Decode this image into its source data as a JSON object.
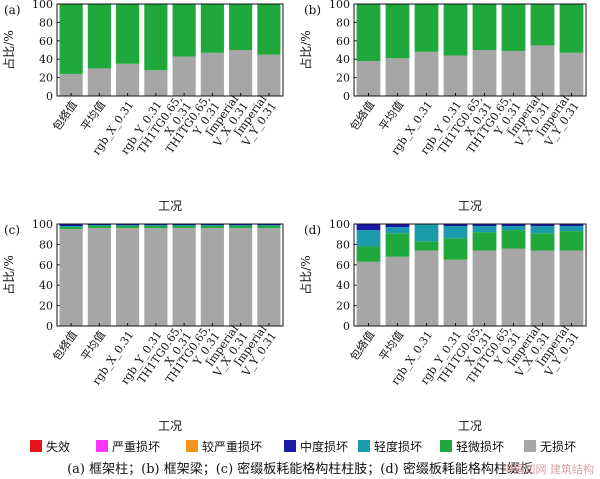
{
  "legend": [
    {
      "label": "失效",
      "color": "#e8141c"
    },
    {
      "label": "严重损坏",
      "color": "#ff33ff"
    },
    {
      "label": "较严重损坏",
      "color": "#f7941d"
    },
    {
      "label": "中度损坏",
      "color": "#1a1aa6"
    },
    {
      "label": "轻度损坏",
      "color": "#1a9aab"
    },
    {
      "label": "轻微损坏",
      "color": "#1fa83c"
    },
    {
      "label": "无损坏",
      "color": "#a6a6a6"
    }
  ],
  "caption": "(a) 框架柱；(b) 框架梁；(c) 密缀板耗能格构柱柱肢；(d) 密缀板耗能格构柱缀板",
  "watermark": "中国知网 建筑结构",
  "chart_data": [
    {
      "panel": "(a)",
      "type": "bar",
      "stacked": true,
      "ylabel": "占比/%",
      "xlabel": "工况",
      "ylim": [
        0,
        100
      ],
      "yticks": [
        0,
        20,
        40,
        60,
        80,
        100
      ],
      "categories": [
        "包络值",
        "平均值",
        "rgb_X_0.31",
        "rgb_Y_0.31",
        "TH1TG0.65_X_0.31",
        "TH1TG0.65_Y_0.31",
        "Imperial V_X_0.31",
        "Imperial V_Y_0.31"
      ],
      "series": [
        {
          "name": "无损坏",
          "values": [
            24,
            30,
            35,
            28,
            43,
            47,
            50,
            45
          ]
        },
        {
          "name": "轻微损坏",
          "values": [
            76,
            70,
            65,
            72,
            57,
            53,
            50,
            55
          ]
        }
      ]
    },
    {
      "panel": "(b)",
      "type": "bar",
      "stacked": true,
      "ylabel": "占比/%",
      "xlabel": "工况",
      "ylim": [
        0,
        100
      ],
      "yticks": [
        0,
        20,
        40,
        60,
        80,
        100
      ],
      "categories": [
        "包络值",
        "平均值",
        "rgb_X_0.31",
        "rgb_Y_0.31",
        "TH1TG0.65_X_0.31",
        "TH1TG0.65_Y_0.31",
        "Imperial V_X_0.31",
        "Imperial V_Y_0.31"
      ],
      "series": [
        {
          "name": "无损坏",
          "values": [
            38,
            41,
            48,
            44,
            50,
            49,
            55,
            47
          ]
        },
        {
          "name": "轻微损坏",
          "values": [
            62,
            59,
            52,
            56,
            50,
            51,
            45,
            53
          ]
        }
      ]
    },
    {
      "panel": "(c)",
      "type": "bar",
      "stacked": true,
      "ylabel": "占比/%",
      "xlabel": "工况",
      "ylim": [
        0,
        100
      ],
      "yticks": [
        0,
        20,
        40,
        60,
        80,
        100
      ],
      "categories": [
        "包络值",
        "平均值",
        "rgb_X_0.31",
        "rgb_Y_0.31",
        "TH1TG0.65_X_0.31",
        "TH1TG0.65_Y_0.31",
        "Imperial V_X_0.31",
        "Imperial V_Y_0.31"
      ],
      "series": [
        {
          "name": "无损坏",
          "values": [
            95,
            96,
            96,
            96,
            96,
            96,
            96,
            96
          ]
        },
        {
          "name": "轻微损坏",
          "values": [
            2,
            2,
            2,
            2,
            2,
            2,
            2,
            2
          ]
        },
        {
          "name": "轻度损坏",
          "values": [
            1,
            1,
            1,
            1,
            1,
            1,
            1,
            1
          ]
        },
        {
          "name": "中度损坏",
          "values": [
            2,
            1,
            1,
            1,
            1,
            1,
            1,
            1
          ]
        }
      ]
    },
    {
      "panel": "(d)",
      "type": "bar",
      "stacked": true,
      "ylabel": "占比/%",
      "xlabel": "工况",
      "ylim": [
        0,
        100
      ],
      "yticks": [
        0,
        20,
        40,
        60,
        80,
        100
      ],
      "categories": [
        "包络值",
        "平均值",
        "rgb_X_0.31",
        "rgb_Y_0.31",
        "TH1TG0.65_X_0.31",
        "TH1TG0.65_Y_0.31",
        "Imperial V_X_0.31",
        "Imperial V_Y_0.31"
      ],
      "series": [
        {
          "name": "无损坏",
          "values": [
            63,
            68,
            74,
            65,
            74,
            76,
            74,
            74
          ]
        },
        {
          "name": "轻微损坏",
          "values": [
            15,
            23,
            9,
            21,
            18,
            18,
            17,
            19
          ]
        },
        {
          "name": "轻度损坏",
          "values": [
            16,
            6,
            17,
            12,
            6,
            4,
            7,
            5
          ]
        },
        {
          "name": "中度损坏",
          "values": [
            6,
            3,
            0,
            2,
            2,
            2,
            2,
            2
          ]
        }
      ]
    }
  ]
}
